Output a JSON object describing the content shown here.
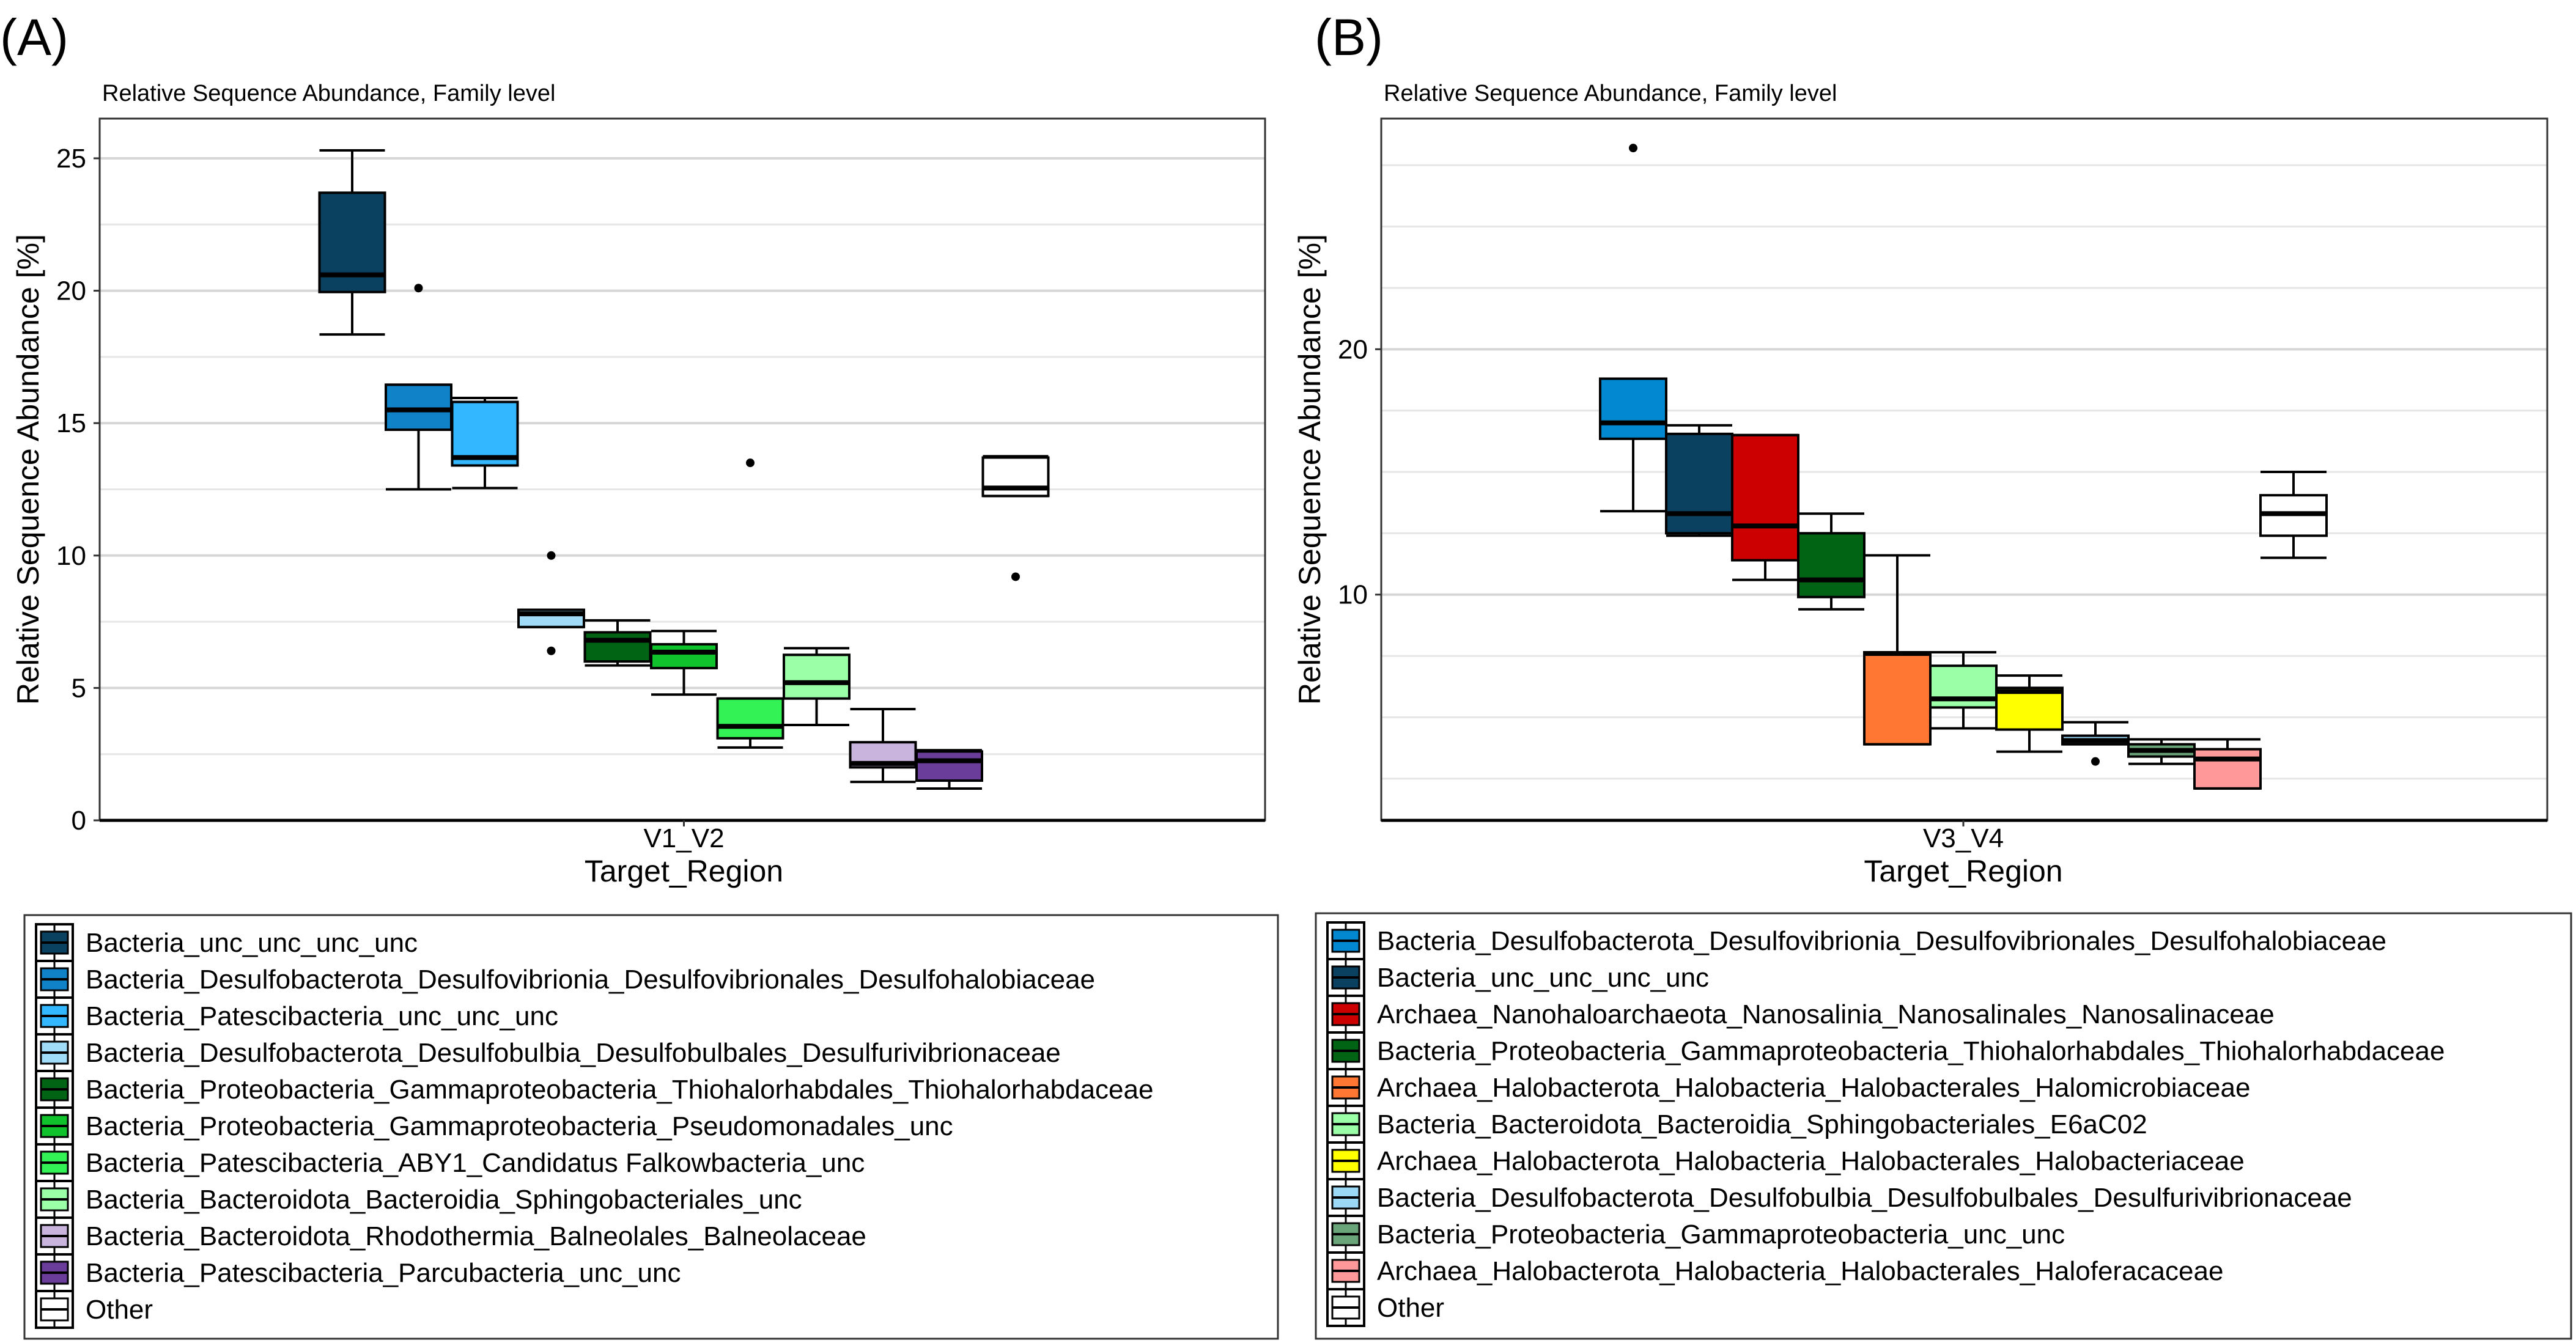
{
  "chart_data": [
    {
      "type": "box",
      "panel_label": "(A)",
      "title": "Relative Sequence Abundance, Family level",
      "xlabel": "Target_Region",
      "ylabel": "Relative Sequence Abundance [%]",
      "category": "V1_V2",
      "ylim": [
        0,
        26.5
      ],
      "yticks": [
        0,
        5,
        10,
        15,
        20,
        25
      ],
      "grid": true,
      "legend_position": "bottom",
      "series": [
        {
          "name": "Bacteria_unc_unc_unc_unc",
          "color": "#0b4160",
          "min": 18.35,
          "q1": 19.95,
          "median": 20.6,
          "q3": 23.7,
          "max": 25.3,
          "outliers": []
        },
        {
          "name": "Bacteria_Desulfobacterota_Desulfovibrionia_Desulfovibrionales_Desulfohalobiaceae",
          "color": "#0f82c8",
          "min": 12.5,
          "q1": 14.75,
          "median": 15.5,
          "q3": 16.45,
          "max": 16.45,
          "outliers": [
            20.1
          ]
        },
        {
          "name": "Bacteria_Patescibacteria_unc_unc_unc",
          "color": "#33b8ff",
          "min": 12.55,
          "q1": 13.4,
          "median": 13.7,
          "q3": 15.8,
          "max": 15.95,
          "outliers": []
        },
        {
          "name": "Bacteria_Desulfobacterota_Desulfobulbia_Desulfobulbales_Desulfurivibrionaceae",
          "color": "#a0dcf7",
          "min": 7.3,
          "q1": 7.3,
          "median": 7.8,
          "q3": 7.95,
          "max": 7.95,
          "outliers": [
            10.0,
            6.4
          ]
        },
        {
          "name": "Bacteria_Proteobacteria_Gammaproteobacteria_Thiohalorhabdales_Thiohalorhabdaceae",
          "color": "#006414",
          "min": 5.85,
          "q1": 6.0,
          "median": 6.8,
          "q3": 7.1,
          "max": 7.55,
          "outliers": []
        },
        {
          "name": "Bacteria_Proteobacteria_Gammaproteobacteria_Pseudomonadales_unc",
          "color": "#10c22c",
          "min": 4.75,
          "q1": 5.75,
          "median": 6.35,
          "q3": 6.65,
          "max": 7.15,
          "outliers": []
        },
        {
          "name": "Bacteria_Patescibacteria_ABY1_Candidatus Falkowbacteria_unc",
          "color": "#33f255",
          "min": 2.75,
          "q1": 3.1,
          "median": 3.55,
          "q3": 4.6,
          "max": 4.6,
          "outliers": [
            13.5
          ]
        },
        {
          "name": "Bacteria_Bacteroidota_Bacteroidia_Sphingobacteriales_unc",
          "color": "#9affa6",
          "min": 3.6,
          "q1": 4.6,
          "median": 5.2,
          "q3": 6.25,
          "max": 6.5,
          "outliers": []
        },
        {
          "name": "Bacteria_Bacteroidota_Rhodothermia_Balneolales_Balneolaceae",
          "color": "#c8b4dc",
          "min": 1.45,
          "q1": 2.0,
          "median": 2.15,
          "q3": 2.95,
          "max": 4.2,
          "outliers": []
        },
        {
          "name": "Bacteria_Patescibacteria_Parcubacteria_unc_unc",
          "color": "#6a3d9a",
          "min": 1.2,
          "q1": 1.5,
          "median": 2.25,
          "q3": 2.6,
          "max": 2.65,
          "outliers": []
        },
        {
          "name": "Other",
          "color": "#ffffff",
          "min": 12.25,
          "q1": 12.25,
          "median": 12.55,
          "q3": 13.7,
          "max": 13.75,
          "outliers": [
            9.2
          ]
        }
      ]
    },
    {
      "type": "box",
      "panel_label": "(B)",
      "title": "Relative Sequence Abundance, Family level",
      "xlabel": "Target_Region",
      "ylabel": "Relative Sequence Abundance [%]",
      "category": "V3_V4",
      "ylim": [
        0.8,
        29.4
      ],
      "yticks": [
        10,
        20
      ],
      "grid": true,
      "legend_position": "bottom",
      "series": [
        {
          "name": "Bacteria_Desulfobacterota_Desulfovibrionia_Desulfovibrionales_Desulfohalobiaceae",
          "color": "#0288d1",
          "min": 13.4,
          "q1": 16.35,
          "median": 17.0,
          "q3": 18.8,
          "max": 18.8,
          "outliers": [
            28.2
          ]
        },
        {
          "name": "Bacteria_unc_unc_unc_unc",
          "color": "#0b4160",
          "min": 12.4,
          "q1": 12.5,
          "median": 13.3,
          "q3": 16.55,
          "max": 16.9,
          "outliers": []
        },
        {
          "name": "Archaea_Nanohaloarchaeota_Nanosalinia_Nanosalinales_Nanosalinaceae",
          "color": "#cc0000",
          "min": 10.6,
          "q1": 11.4,
          "median": 12.8,
          "q3": 16.5,
          "max": 16.5,
          "outliers": []
        },
        {
          "name": "Bacteria_Proteobacteria_Gammaproteobacteria_Thiohalorhabdales_Thiohalorhabdaceae",
          "color": "#006414",
          "min": 9.4,
          "q1": 9.9,
          "median": 10.6,
          "q3": 12.5,
          "max": 13.3,
          "outliers": []
        },
        {
          "name": "Archaea_Halobacterota_Halobacteria_Halobacterales_Halomicrobiaceae",
          "color": "#ff7733",
          "min": 3.9,
          "q1": 3.9,
          "median": 7.6,
          "q3": 7.65,
          "max": 11.6,
          "outliers": []
        },
        {
          "name": "Bacteria_Bacteroidota_Bacteroidia_Sphingobacteriales_E6aC02",
          "color": "#9affa6",
          "min": 4.55,
          "q1": 5.4,
          "median": 5.75,
          "q3": 7.1,
          "max": 7.65,
          "outliers": []
        },
        {
          "name": "Archaea_Halobacterota_Halobacteria_Halobacterales_Halobacteriaceae",
          "color": "#ffff00",
          "min": 3.6,
          "q1": 4.5,
          "median": 6.05,
          "q3": 6.2,
          "max": 6.7,
          "outliers": []
        },
        {
          "name": "Bacteria_Desulfobacterota_Desulfobulbia_Desulfobulbales_Desulfurivibrionaceae",
          "color": "#9ad8f5",
          "min": 3.9,
          "q1": 3.9,
          "median": 4.05,
          "q3": 4.25,
          "max": 4.8,
          "outliers": [
            3.2
          ]
        },
        {
          "name": "Bacteria_Proteobacteria_Gammaproteobacteria_unc_unc",
          "color": "#6aa57a",
          "min": 3.1,
          "q1": 3.4,
          "median": 3.65,
          "q3": 3.9,
          "max": 4.1,
          "outliers": []
        },
        {
          "name": "Archaea_Halobacterota_Halobacteria_Halobacterales_Haloferacaceae",
          "color": "#ff9999",
          "min": 2.1,
          "q1": 2.1,
          "median": 3.3,
          "q3": 3.7,
          "max": 4.1,
          "outliers": []
        },
        {
          "name": "Other",
          "color": "#ffffff",
          "min": 11.5,
          "q1": 12.4,
          "median": 13.3,
          "q3": 14.05,
          "max": 15.0,
          "outliers": []
        }
      ]
    }
  ]
}
